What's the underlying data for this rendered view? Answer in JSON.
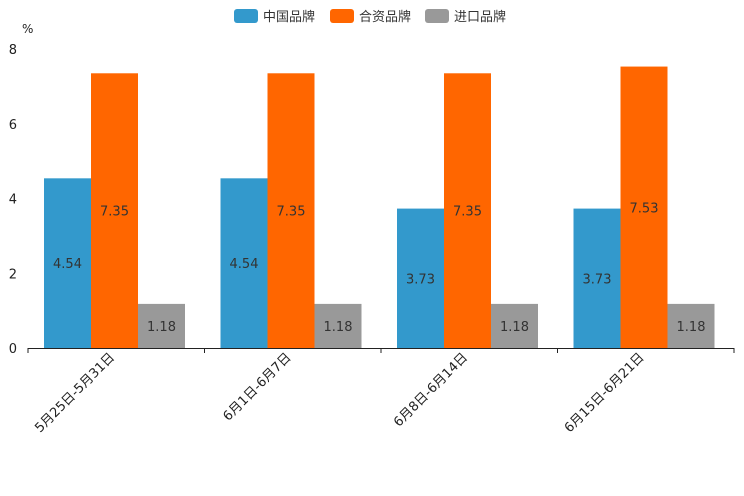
{
  "chart_data": {
    "type": "bar",
    "y_unit": "%",
    "ylim": [
      0,
      8
    ],
    "yticks": [
      0,
      2,
      4,
      6,
      8
    ],
    "categories": [
      "5月25日-5月31日",
      "6月1日-6月7日",
      "6月8日-6月14日",
      "6月15日-6月21日"
    ],
    "series": [
      {
        "name": "中国品牌",
        "color": "#3399cc",
        "values": [
          4.54,
          4.54,
          3.73,
          3.73
        ]
      },
      {
        "name": "合资品牌",
        "color": "#ff6600",
        "values": [
          7.35,
          7.35,
          7.35,
          7.53
        ]
      },
      {
        "name": "进口品牌",
        "color": "#999999",
        "values": [
          1.18,
          1.18,
          1.18,
          1.18
        ]
      }
    ],
    "legend_position": "top-center",
    "grid": false
  }
}
